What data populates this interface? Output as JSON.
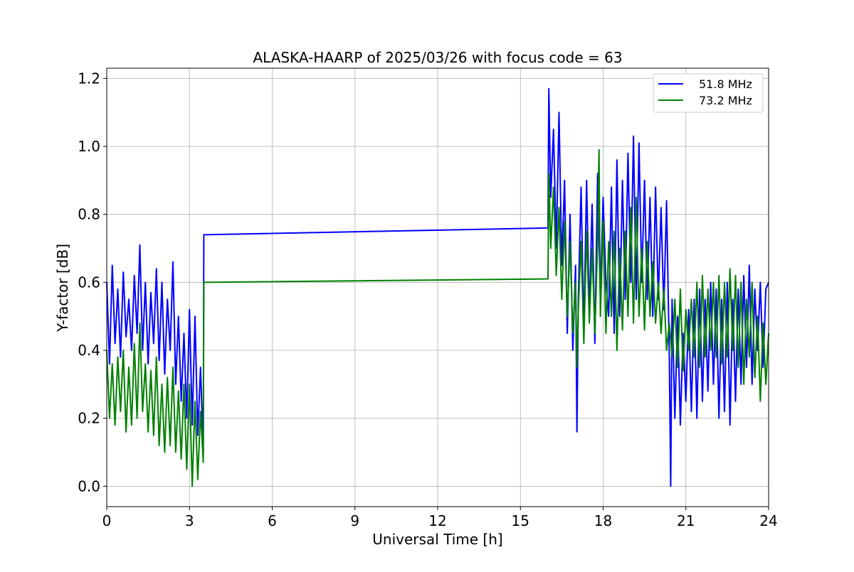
{
  "chart_data": {
    "type": "line",
    "title": "ALASKA-HAARP of 2025/03/26 with focus code = 63",
    "xlabel": "Universal Time [h]",
    "ylabel": "Y-factor [dB]",
    "xlim": [
      0,
      24
    ],
    "ylim": [
      -0.06,
      1.23
    ],
    "xticks": [
      0,
      3,
      6,
      9,
      12,
      15,
      18,
      21,
      24
    ],
    "xtick_labels": [
      "0",
      "3",
      "6",
      "9",
      "12",
      "15",
      "18",
      "21",
      "24"
    ],
    "yticks": [
      0.0,
      0.2,
      0.4,
      0.6,
      0.8,
      1.0,
      1.2
    ],
    "ytick_labels": [
      "0.0",
      "0.2",
      "0.4",
      "0.6",
      "0.8",
      "1.0",
      "1.2"
    ],
    "grid": true,
    "legend_position": "top-right",
    "series": [
      {
        "name": "51.8 MHz",
        "color": "#0000ff",
        "x": [
          0,
          0.1,
          0.2,
          0.3,
          0.4,
          0.5,
          0.6,
          0.7,
          0.8,
          0.9,
          1.0,
          1.1,
          1.2,
          1.3,
          1.4,
          1.5,
          1.6,
          1.7,
          1.8,
          1.9,
          2.0,
          2.1,
          2.2,
          2.3,
          2.4,
          2.5,
          2.6,
          2.7,
          2.8,
          2.9,
          3.0,
          3.1,
          3.2,
          3.3,
          3.4,
          3.5,
          3.52,
          16.0,
          16.03,
          16.1,
          16.2,
          16.3,
          16.4,
          16.5,
          16.6,
          16.7,
          16.8,
          16.9,
          17.0,
          17.05,
          17.1,
          17.2,
          17.3,
          17.4,
          17.5,
          17.6,
          17.7,
          17.8,
          17.9,
          18.0,
          18.1,
          18.2,
          18.3,
          18.4,
          18.5,
          18.6,
          18.7,
          18.8,
          18.9,
          19.0,
          19.1,
          19.2,
          19.3,
          19.4,
          19.5,
          19.6,
          19.7,
          19.8,
          19.9,
          20.0,
          20.1,
          20.2,
          20.3,
          20.4,
          20.45,
          20.5,
          20.6,
          20.7,
          20.8,
          20.9,
          21.0,
          21.1,
          21.2,
          21.3,
          21.4,
          21.5,
          21.6,
          21.7,
          21.8,
          21.9,
          22.0,
          22.1,
          22.2,
          22.3,
          22.4,
          22.5,
          22.6,
          22.7,
          22.8,
          22.9,
          23.0,
          23.1,
          23.2,
          23.3,
          23.4,
          23.5,
          23.6,
          23.7,
          23.8,
          23.9,
          24.0
        ],
        "y": [
          0.6,
          0.36,
          0.65,
          0.42,
          0.58,
          0.38,
          0.63,
          0.44,
          0.55,
          0.4,
          0.62,
          0.45,
          0.71,
          0.4,
          0.6,
          0.36,
          0.57,
          0.42,
          0.64,
          0.37,
          0.6,
          0.33,
          0.55,
          0.4,
          0.66,
          0.3,
          0.5,
          0.25,
          0.45,
          0.2,
          0.52,
          0.18,
          0.5,
          0.15,
          0.35,
          0.1,
          0.74,
          0.76,
          1.17,
          0.85,
          1.05,
          0.7,
          1.1,
          0.65,
          0.9,
          0.45,
          0.8,
          0.4,
          0.65,
          0.16,
          0.55,
          0.88,
          0.45,
          0.9,
          0.5,
          0.83,
          0.42,
          0.92,
          0.55,
          0.85,
          0.6,
          0.5,
          0.88,
          0.45,
          0.96,
          0.5,
          0.9,
          0.55,
          0.98,
          0.6,
          1.03,
          0.55,
          1.01,
          0.6,
          0.9,
          0.55,
          0.85,
          0.5,
          0.88,
          0.55,
          0.82,
          0.52,
          0.84,
          0.38,
          0.0,
          0.55,
          0.2,
          0.5,
          0.18,
          0.45,
          0.25,
          0.52,
          0.22,
          0.55,
          0.2,
          0.58,
          0.25,
          0.55,
          0.28,
          0.6,
          0.3,
          0.58,
          0.2,
          0.55,
          0.22,
          0.6,
          0.18,
          0.55,
          0.25,
          0.58,
          0.3,
          0.62,
          0.35,
          0.65,
          0.3,
          0.58,
          0.4,
          0.6,
          0.35,
          0.58,
          0.6
        ]
      },
      {
        "name": "73.2 MHz",
        "color": "#008000",
        "x": [
          0,
          0.1,
          0.2,
          0.3,
          0.4,
          0.5,
          0.6,
          0.7,
          0.8,
          0.9,
          1.0,
          1.1,
          1.2,
          1.3,
          1.4,
          1.5,
          1.6,
          1.7,
          1.8,
          1.9,
          2.0,
          2.1,
          2.2,
          2.3,
          2.4,
          2.5,
          2.6,
          2.7,
          2.8,
          2.9,
          3.0,
          3.1,
          3.2,
          3.3,
          3.4,
          3.5,
          3.52,
          16.0,
          16.03,
          16.1,
          16.2,
          16.3,
          16.4,
          16.5,
          16.6,
          16.7,
          16.8,
          16.9,
          17.0,
          17.05,
          17.1,
          17.2,
          17.3,
          17.4,
          17.5,
          17.6,
          17.7,
          17.8,
          17.85,
          17.9,
          18.0,
          18.1,
          18.2,
          18.3,
          18.4,
          18.5,
          18.6,
          18.7,
          18.8,
          18.9,
          19.0,
          19.1,
          19.2,
          19.3,
          19.4,
          19.5,
          19.6,
          19.7,
          19.8,
          19.9,
          20.0,
          20.1,
          20.2,
          20.3,
          20.4,
          20.5,
          20.6,
          20.7,
          20.8,
          20.9,
          21.0,
          21.1,
          21.2,
          21.3,
          21.4,
          21.5,
          21.6,
          21.7,
          21.8,
          21.9,
          22.0,
          22.1,
          22.2,
          22.3,
          22.4,
          22.5,
          22.6,
          22.7,
          22.8,
          22.9,
          23.0,
          23.1,
          23.2,
          23.3,
          23.4,
          23.5,
          23.6,
          23.7,
          23.8,
          23.9,
          24.0
        ],
        "y": [
          0.4,
          0.2,
          0.36,
          0.18,
          0.38,
          0.22,
          0.4,
          0.16,
          0.35,
          0.18,
          0.42,
          0.2,
          0.48,
          0.22,
          0.36,
          0.16,
          0.34,
          0.15,
          0.38,
          0.12,
          0.3,
          0.1,
          0.32,
          0.12,
          0.35,
          0.1,
          0.28,
          0.08,
          0.3,
          0.05,
          0.3,
          0.0,
          0.25,
          0.02,
          0.22,
          0.07,
          0.6,
          0.61,
          0.92,
          0.7,
          0.88,
          0.62,
          0.82,
          0.55,
          0.78,
          0.5,
          0.72,
          0.45,
          0.6,
          0.35,
          0.52,
          0.72,
          0.42,
          0.75,
          0.48,
          0.7,
          0.45,
          0.72,
          0.99,
          0.5,
          0.78,
          0.45,
          0.72,
          0.5,
          0.75,
          0.4,
          0.7,
          0.46,
          0.75,
          0.5,
          0.82,
          0.48,
          0.85,
          0.5,
          0.7,
          0.46,
          0.72,
          0.5,
          0.66,
          0.48,
          0.6,
          0.45,
          0.58,
          0.4,
          0.48,
          0.38,
          0.55,
          0.35,
          0.58,
          0.34,
          0.52,
          0.4,
          0.55,
          0.38,
          0.6,
          0.35,
          0.62,
          0.38,
          0.58,
          0.4,
          0.6,
          0.38,
          0.62,
          0.36,
          0.6,
          0.38,
          0.64,
          0.4,
          0.62,
          0.35,
          0.6,
          0.3,
          0.55,
          0.38,
          0.6,
          0.32,
          0.5,
          0.25,
          0.48,
          0.3,
          0.45
        ]
      }
    ]
  }
}
